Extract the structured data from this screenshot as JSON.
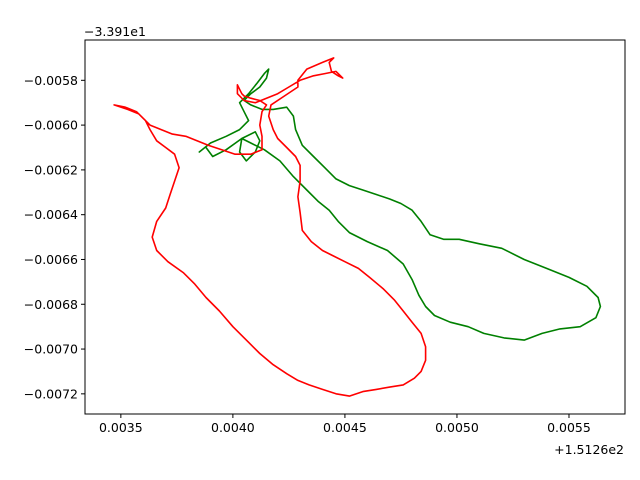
{
  "chart_data": {
    "type": "line",
    "title": "",
    "xlabel": "",
    "ylabel": "",
    "x_offset_label": "+1.5126e2",
    "y_offset_label": "−3.391e1",
    "xlim": [
      0.00334,
      0.00575
    ],
    "ylim": [
      -0.00729,
      -0.00562
    ],
    "x_ticks": [
      0.0035,
      0.004,
      0.0045,
      0.005,
      0.0055
    ],
    "x_tick_labels": [
      "0.0035",
      "0.0040",
      "0.0045",
      "0.0050",
      "0.0055"
    ],
    "y_ticks": [
      -0.0058,
      -0.006,
      -0.0062,
      -0.0064,
      -0.0066,
      -0.0068,
      -0.007,
      -0.0072
    ],
    "y_tick_labels": [
      "−0.0058",
      "−0.0060",
      "−0.0062",
      "−0.0064",
      "−0.0066",
      "−0.0068",
      "−0.0070",
      "−0.0072"
    ],
    "grid": false,
    "series": [
      {
        "color": "#008000",
        "x": [
          0.00385,
          0.0039,
          0.00397,
          0.00403,
          0.00407,
          0.00405,
          0.00403,
          0.00407,
          0.00411,
          0.00414,
          0.00416,
          0.00415,
          0.00412,
          0.00408,
          0.00405,
          0.00408,
          0.00413,
          0.00418,
          0.00424,
          0.00427,
          0.00428,
          0.00431,
          0.00436,
          0.00441,
          0.00446,
          0.00452,
          0.00458,
          0.00464,
          0.0047,
          0.00475,
          0.0048,
          0.00484,
          0.00488,
          0.00494,
          0.00501,
          0.0051,
          0.0052,
          0.0053,
          0.0054,
          0.0055,
          0.00558,
          0.00563,
          0.00564,
          0.00562,
          0.00555,
          0.00546,
          0.00538,
          0.0053,
          0.00521,
          0.00512,
          0.00505,
          0.00497,
          0.0049,
          0.00486,
          0.00483,
          0.0048,
          0.00476,
          0.00469,
          0.0046,
          0.00452,
          0.00447,
          0.00443,
          0.00438,
          0.00433,
          0.00427,
          0.00421,
          0.00414,
          0.00408,
          0.00404,
          0.00403,
          0.00406,
          0.0041,
          0.00412,
          0.0041,
          0.00404,
          0.00397,
          0.00391,
          0.00388
        ],
        "y": [
          -0.00612,
          -0.00608,
          -0.00605,
          -0.00602,
          -0.00598,
          -0.00594,
          -0.0059,
          -0.00586,
          -0.00581,
          -0.00577,
          -0.00575,
          -0.00579,
          -0.00583,
          -0.00586,
          -0.00589,
          -0.00591,
          -0.00593,
          -0.00593,
          -0.00592,
          -0.00596,
          -0.00602,
          -0.00609,
          -0.00614,
          -0.00619,
          -0.00624,
          -0.00627,
          -0.00629,
          -0.00631,
          -0.00633,
          -0.00635,
          -0.00638,
          -0.00643,
          -0.00649,
          -0.00651,
          -0.00651,
          -0.00653,
          -0.00655,
          -0.0066,
          -0.00664,
          -0.00668,
          -0.00672,
          -0.00677,
          -0.00681,
          -0.00686,
          -0.0069,
          -0.00691,
          -0.00693,
          -0.00696,
          -0.00695,
          -0.00693,
          -0.0069,
          -0.00688,
          -0.00685,
          -0.00681,
          -0.00676,
          -0.00669,
          -0.00662,
          -0.00656,
          -0.00652,
          -0.00648,
          -0.00643,
          -0.00638,
          -0.00634,
          -0.00629,
          -0.00623,
          -0.00616,
          -0.00611,
          -0.00608,
          -0.00606,
          -0.00612,
          -0.00616,
          -0.00612,
          -0.00607,
          -0.00603,
          -0.00606,
          -0.00611,
          -0.00614,
          -0.0061
        ]
      },
      {
        "color": "#ff0000",
        "x": [
          0.00347,
          0.00352,
          0.00357,
          0.0036,
          0.00363,
          0.00368,
          0.00373,
          0.00379,
          0.00384,
          0.00389,
          0.00395,
          0.00401,
          0.00408,
          0.00413,
          0.00413,
          0.00412,
          0.00413,
          0.00415,
          0.00412,
          0.00408,
          0.00405,
          0.00404,
          0.00403,
          0.00402,
          0.00402,
          0.00405,
          0.0041,
          0.00415,
          0.0042,
          0.00425,
          0.0043,
          0.00436,
          0.00441,
          0.00446,
          0.00449,
          0.00447,
          0.00444,
          0.00443,
          0.00445,
          0.0044,
          0.00433,
          0.00429,
          0.00429,
          0.00423,
          0.00417,
          0.00416,
          0.00418,
          0.0042,
          0.00424,
          0.00428,
          0.0043,
          0.0043,
          0.00429,
          0.0043,
          0.00431,
          0.00435,
          0.0044,
          0.00444,
          0.0045,
          0.00456,
          0.00461,
          0.00467,
          0.00472,
          0.00476,
          0.0048,
          0.00484,
          0.00486,
          0.00486,
          0.00484,
          0.00481,
          0.00476,
          0.0047,
          0.00464,
          0.00458,
          0.00452,
          0.00446,
          0.0044,
          0.00434,
          0.00429,
          0.00424,
          0.00418,
          0.00412,
          0.00407,
          0.004,
          0.00394,
          0.00388,
          0.00383,
          0.00378,
          0.00371,
          0.00366,
          0.00364,
          0.00366,
          0.0037,
          0.00372,
          0.00374,
          0.00376,
          0.00374,
          0.0037,
          0.00366,
          0.00363,
          0.00361,
          0.00358,
          0.00353,
          0.00347
        ],
        "y": [
          -0.00591,
          -0.00592,
          -0.00594,
          -0.00597,
          -0.006,
          -0.00602,
          -0.00604,
          -0.00605,
          -0.00607,
          -0.00609,
          -0.00611,
          -0.00613,
          -0.00613,
          -0.00611,
          -0.00605,
          -0.006,
          -0.00594,
          -0.00591,
          -0.00589,
          -0.00588,
          -0.00587,
          -0.00586,
          -0.00584,
          -0.00582,
          -0.00586,
          -0.00589,
          -0.0059,
          -0.00588,
          -0.00586,
          -0.00583,
          -0.0058,
          -0.00578,
          -0.00577,
          -0.00576,
          -0.00579,
          -0.00578,
          -0.00576,
          -0.00572,
          -0.0057,
          -0.00572,
          -0.00575,
          -0.0058,
          -0.00583,
          -0.00587,
          -0.00591,
          -0.00596,
          -0.00602,
          -0.00606,
          -0.0061,
          -0.00614,
          -0.00618,
          -0.00625,
          -0.00632,
          -0.00639,
          -0.00647,
          -0.00652,
          -0.00656,
          -0.00658,
          -0.00661,
          -0.00664,
          -0.00668,
          -0.00673,
          -0.00678,
          -0.00683,
          -0.00688,
          -0.00693,
          -0.00699,
          -0.00705,
          -0.0071,
          -0.00713,
          -0.00716,
          -0.00717,
          -0.00718,
          -0.00719,
          -0.00721,
          -0.0072,
          -0.00718,
          -0.00716,
          -0.00714,
          -0.00711,
          -0.00707,
          -0.00702,
          -0.00697,
          -0.0069,
          -0.00683,
          -0.00677,
          -0.00671,
          -0.00666,
          -0.00661,
          -0.00656,
          -0.0065,
          -0.00643,
          -0.00637,
          -0.00631,
          -0.00625,
          -0.00619,
          -0.00613,
          -0.0061,
          -0.00607,
          -0.00602,
          -0.00598,
          -0.00595,
          -0.00593,
          -0.00591
        ]
      }
    ]
  }
}
